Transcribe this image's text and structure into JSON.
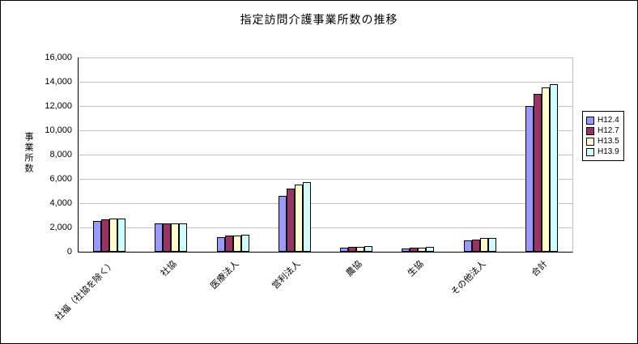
{
  "chart_data": {
    "type": "bar",
    "title": "指定訪問介護事業所数の推移",
    "xlabel": "",
    "ylabel": "事業所数",
    "ylim": [
      0,
      16000
    ],
    "ytick_step": 2000,
    "ytick_labels": [
      "0",
      "2,000",
      "4,000",
      "6,000",
      "8,000",
      "10,000",
      "12,000",
      "14,000",
      "16,000"
    ],
    "grid": true,
    "legend_position": "right",
    "categories": [
      "社福（社協を除く）",
      "社協",
      "医療法人",
      "営利法人",
      "農協",
      "生協",
      "その他法人",
      "合計"
    ],
    "series": [
      {
        "name": "H12.4",
        "color": "#9999FF",
        "values": [
          2500,
          2300,
          1200,
          4600,
          350,
          250,
          900,
          12000
        ]
      },
      {
        "name": "H12.7",
        "color": "#993366",
        "values": [
          2650,
          2300,
          1300,
          5200,
          400,
          300,
          1000,
          13000
        ]
      },
      {
        "name": "H13.5",
        "color": "#FFFFCC",
        "values": [
          2700,
          2350,
          1350,
          5500,
          430,
          330,
          1100,
          13500
        ]
      },
      {
        "name": "H13.9",
        "color": "#CCFFFF",
        "values": [
          2700,
          2350,
          1400,
          5700,
          450,
          400,
          1150,
          13800
        ]
      }
    ]
  }
}
